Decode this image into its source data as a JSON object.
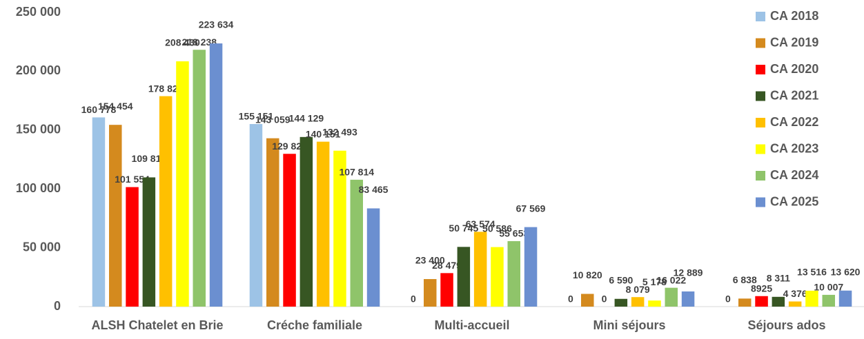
{
  "chart_data": {
    "type": "bar",
    "categories": [
      "ALSH Chatelet en Brie",
      "Créche familiale",
      "Multi-accueil",
      "Mini séjours",
      "Séjours ados"
    ],
    "series": [
      {
        "name": "CA 2018",
        "color": "#9dc3e6",
        "values": [
          160778,
          155151,
          0,
          0,
          0
        ],
        "value_labels": [
          "160 778",
          "155 151",
          "0",
          "0",
          "0"
        ]
      },
      {
        "name": "CA 2019",
        "color": "#d48a1e",
        "values": [
          154454,
          143059,
          23400,
          10820,
          6838
        ],
        "value_labels": [
          "154 454",
          "143 059",
          "23 400",
          "10 820",
          "6 838"
        ]
      },
      {
        "name": "CA 2020",
        "color": "#ff0000",
        "values": [
          101554,
          129824,
          28479,
          0,
          8925
        ],
        "value_labels": [
          "101 554",
          "129 824",
          "28 479",
          "0",
          "8925"
        ]
      },
      {
        "name": "CA 2021",
        "color": "#375623",
        "values": [
          109813,
          144129,
          50745,
          6590,
          8311
        ],
        "value_labels": [
          "109 813",
          "144 129",
          "50 745",
          "6 590",
          "8 311"
        ]
      },
      {
        "name": "CA 2022",
        "color": "#ffc000",
        "values": [
          178823,
          140151,
          63574,
          8079,
          4376
        ],
        "value_labels": [
          "178 823",
          "140 151",
          "63 574",
          "8 079",
          "4 376"
        ]
      },
      {
        "name": "CA 2023",
        "color": "#ffff00",
        "values": [
          208430,
          132493,
          50586,
          5178,
          13516
        ],
        "value_labels": [
          "208 430",
          "132 493",
          "50 586",
          "5 178",
          "13 516"
        ]
      },
      {
        "name": "CA 2024",
        "color": "#8fc46a",
        "values": [
          218238,
          107814,
          55653,
          16022,
          10007
        ],
        "value_labels": [
          "218 238",
          "107 814",
          "55 653",
          "16 022",
          "10 007"
        ]
      },
      {
        "name": "CA 2025",
        "color": "#6b8fd0",
        "values": [
          223634,
          83465,
          67569,
          12889,
          13620
        ],
        "value_labels": [
          "223 634",
          "83 465",
          "67 569",
          "12 889",
          "13 620"
        ]
      }
    ],
    "ylim": [
      0,
      250000
    ],
    "yticks": [
      0,
      {
        "value": 50000,
        "label": "50 000"
      },
      {
        "value": 100000,
        "label": "100 000"
      },
      {
        "value": 150000,
        "label": "150 000"
      },
      {
        "value": 200000,
        "label": "200 000"
      },
      {
        "value": 250000,
        "label": "250 000"
      }
    ],
    "legend": "right"
  }
}
